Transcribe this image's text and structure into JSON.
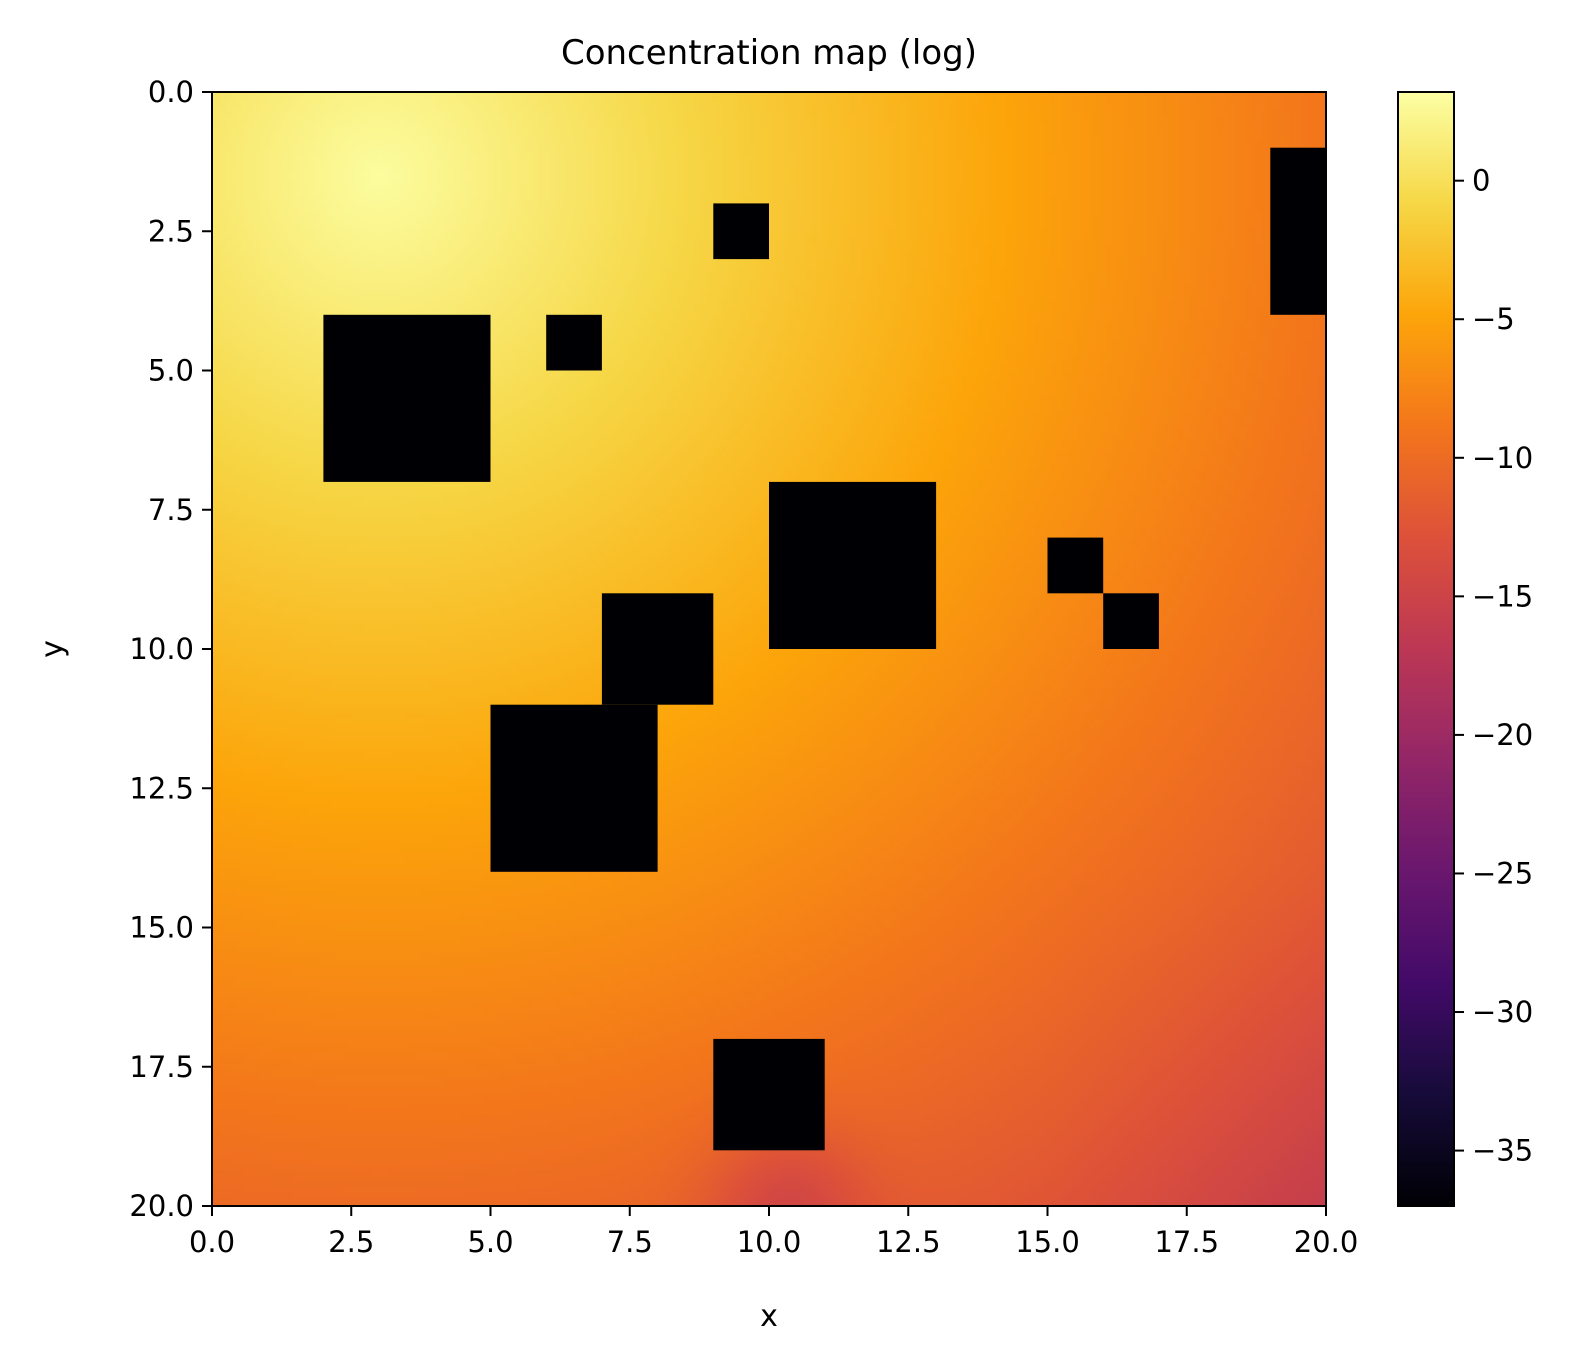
{
  "chart_data": {
    "type": "heatmap",
    "title": "Concentration map (log)",
    "xlabel": "x",
    "ylabel": "y",
    "xlim": [
      0.0,
      20.0
    ],
    "ylim": [
      20.0,
      0.0
    ],
    "y_axis_inverted": true,
    "xticks": [
      "0.0",
      "2.5",
      "5.0",
      "7.5",
      "10.0",
      "12.5",
      "15.0",
      "17.5",
      "20.0"
    ],
    "yticks": [
      "0.0",
      "2.5",
      "5.0",
      "7.5",
      "10.0",
      "12.5",
      "15.0",
      "17.5",
      "20.0"
    ],
    "colormap": "inferno",
    "colorbar": {
      "range": [
        -37,
        3.2
      ],
      "ticks": [
        "0",
        "−5",
        "−10",
        "−15",
        "−20",
        "−25",
        "−30",
        "−35"
      ],
      "tick_values": [
        0,
        -5,
        -10,
        -15,
        -20,
        -25,
        -30,
        -35
      ]
    },
    "field": {
      "description_values": "approximate log concentration sampled on the grid",
      "source": [
        3.0,
        1.5
      ],
      "peak_value": 3.0,
      "corner_values": {
        "top_right": -12,
        "bottom_left": -11,
        "bottom_right": -17
      }
    },
    "obstacles": [
      {
        "x0": 2,
        "x1": 5,
        "y0": 4,
        "y1": 7
      },
      {
        "x0": 6,
        "x1": 7,
        "y0": 4,
        "y1": 5
      },
      {
        "x0": 9,
        "x1": 10,
        "y0": 2,
        "y1": 3
      },
      {
        "x0": 19,
        "x1": 20,
        "y0": 1,
        "y1": 4
      },
      {
        "x0": 10,
        "x1": 13,
        "y0": 7,
        "y1": 10
      },
      {
        "x0": 15,
        "x1": 16,
        "y0": 8,
        "y1": 9
      },
      {
        "x0": 16,
        "x1": 17,
        "y0": 9,
        "y1": 10
      },
      {
        "x0": 7,
        "x1": 9,
        "y0": 9,
        "y1": 11
      },
      {
        "x0": 5,
        "x1": 8,
        "y0": 11,
        "y1": 14
      },
      {
        "x0": 9,
        "x1": 11,
        "y0": 17,
        "y1": 19
      }
    ],
    "obstacle_value": -37,
    "grid": false
  }
}
